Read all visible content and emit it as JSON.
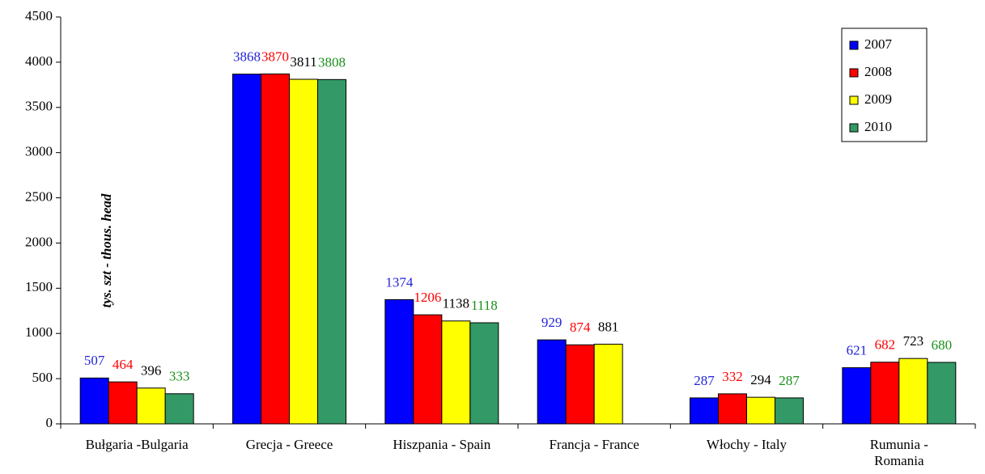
{
  "chart_data": {
    "type": "bar",
    "y_label": "tys. szt - thous. head",
    "categories": [
      "Bułgaria -Bulgaria",
      "Grecja - Greece",
      "Hiszpania - Spain",
      "Francja - France",
      "Włochy - Italy",
      "Rumunia -\nRomania"
    ],
    "series": [
      {
        "name": "2007",
        "color": "#0000ff",
        "label_color": "#2424d8",
        "values": [
          507,
          3868,
          1374,
          929,
          287,
          621
        ]
      },
      {
        "name": "2008",
        "color": "#ff0000",
        "label_color": "#ff0000",
        "values": [
          464,
          3870,
          1206,
          874,
          332,
          682
        ]
      },
      {
        "name": "2009",
        "color": "#ffff00",
        "label_color": "#000000",
        "values": [
          396,
          3811,
          1138,
          881,
          294,
          723
        ]
      },
      {
        "name": "2010",
        "color": "#339966",
        "label_color": "#1a8f1a",
        "values": [
          333,
          3808,
          1118,
          null,
          287,
          680
        ]
      }
    ],
    "ylim": [
      0,
      4500
    ],
    "yticks": [
      0,
      500,
      1000,
      1500,
      2000,
      2500,
      3000,
      3500,
      4000,
      4500
    ],
    "legend": "top-right"
  }
}
